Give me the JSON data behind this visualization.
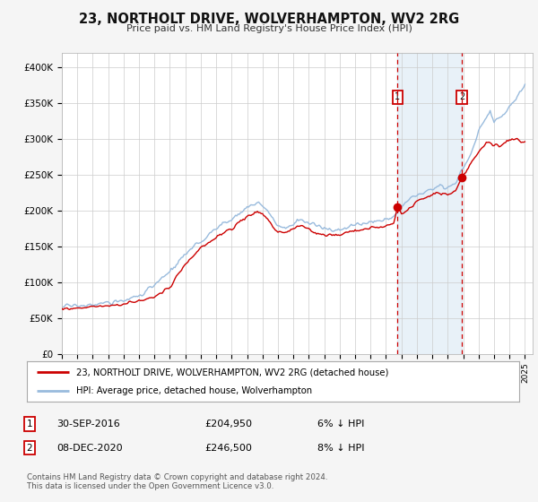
{
  "title": "23, NORTHOLT DRIVE, WOLVERHAMPTON, WV2 2RG",
  "subtitle": "Price paid vs. HM Land Registry's House Price Index (HPI)",
  "ylabel_ticks": [
    "£0",
    "£50K",
    "£100K",
    "£150K",
    "£200K",
    "£250K",
    "£300K",
    "£350K",
    "£400K"
  ],
  "ylabel_values": [
    0,
    50000,
    100000,
    150000,
    200000,
    250000,
    300000,
    350000,
    400000
  ],
  "ylim": [
    0,
    420000
  ],
  "xlim_start": 1995.0,
  "xlim_end": 2025.5,
  "hpi_color": "#99bbdd",
  "price_color": "#cc0000",
  "marker1_date": 2016.75,
  "marker1_value": 204950,
  "marker2_date": 2020.92,
  "marker2_value": 246500,
  "marker1_label": "30-SEP-2016",
  "marker1_price": "£204,950",
  "marker1_pct": "6% ↓ HPI",
  "marker2_label": "08-DEC-2020",
  "marker2_price": "£246,500",
  "marker2_pct": "8% ↓ HPI",
  "legend_line1": "23, NORTHOLT DRIVE, WOLVERHAMPTON, WV2 2RG (detached house)",
  "legend_line2": "HPI: Average price, detached house, Wolverhampton",
  "footnote": "Contains HM Land Registry data © Crown copyright and database right 2024.\nThis data is licensed under the Open Government Licence v3.0.",
  "background_color": "#f5f5f5",
  "plot_bg_color": "#ffffff",
  "grid_color": "#cccccc",
  "span_color": "#cce0f0"
}
